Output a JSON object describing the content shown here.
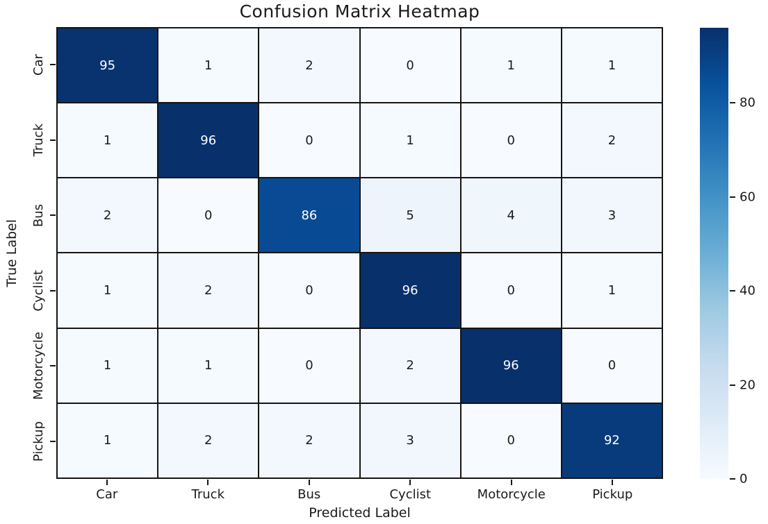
{
  "chart_data": {
    "type": "heatmap",
    "title": "Confusion Matrix Heatmap",
    "xlabel": "Predicted Label",
    "ylabel": "True Label",
    "x_categories": [
      "Car",
      "Truck",
      "Bus",
      "Cyclist",
      "Motorcycle",
      "Pickup"
    ],
    "y_categories": [
      "Car",
      "Truck",
      "Bus",
      "Cyclist",
      "Motorcycle",
      "Pickup"
    ],
    "values": [
      [
        95,
        1,
        2,
        0,
        1,
        1
      ],
      [
        1,
        96,
        0,
        1,
        0,
        2
      ],
      [
        2,
        0,
        86,
        5,
        4,
        3
      ],
      [
        1,
        2,
        0,
        96,
        0,
        1
      ],
      [
        1,
        1,
        0,
        2,
        96,
        0
      ],
      [
        1,
        2,
        2,
        3,
        0,
        92
      ]
    ],
    "vmin": 0,
    "vmax": 96,
    "colormap": "Blues",
    "colormap_stops": [
      {
        "pos": 0.0,
        "color": "#f7fbff"
      },
      {
        "pos": 0.125,
        "color": "#deebf7"
      },
      {
        "pos": 0.25,
        "color": "#c6dbef"
      },
      {
        "pos": 0.375,
        "color": "#9ecae1"
      },
      {
        "pos": 0.5,
        "color": "#6baed6"
      },
      {
        "pos": 0.625,
        "color": "#4292c6"
      },
      {
        "pos": 0.75,
        "color": "#2171b5"
      },
      {
        "pos": 0.875,
        "color": "#08519c"
      },
      {
        "pos": 1.0,
        "color": "#08306b"
      }
    ],
    "colorbar_ticks": [
      0,
      20,
      40,
      60,
      80
    ],
    "grid_line_color": "#141414",
    "annot_color_light_bg": "#1a1a1a",
    "annot_color_dark_bg": "#ffffff",
    "legend_position": "right",
    "grid": "cell-borders-on"
  }
}
